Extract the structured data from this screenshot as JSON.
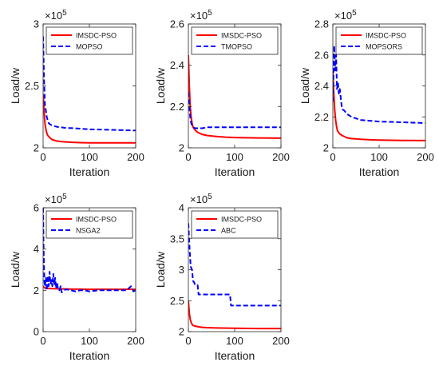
{
  "chart_data": [
    {
      "type": "line",
      "xlabel": "Iteration",
      "ylabel": "Load/w",
      "y_multiplier": "×10",
      "y_exponent": "5",
      "xlim": [
        0,
        200
      ],
      "ylim": [
        2,
        3
      ],
      "xticks": [
        0,
        100,
        200
      ],
      "yticks": [
        2,
        2.5,
        3
      ],
      "ytick_labels": [
        "2",
        "2.5",
        "3"
      ],
      "legend_position": "top-right",
      "series": [
        {
          "name": "IMSDC-PSO",
          "color": "#ff0000",
          "dash": "solid",
          "x": [
            0,
            2,
            4,
            6,
            8,
            10,
            15,
            20,
            30,
            40,
            60,
            80,
            100,
            150,
            200
          ],
          "y": [
            2.43,
            2.3,
            2.2,
            2.15,
            2.12,
            2.1,
            2.08,
            2.065,
            2.055,
            2.05,
            2.045,
            2.042,
            2.04,
            2.04,
            2.04
          ]
        },
        {
          "name": "MOPSO",
          "color": "#0000ff",
          "dash": "dashed",
          "x": [
            0,
            2,
            4,
            6,
            8,
            10,
            12,
            15,
            20,
            30,
            40,
            50,
            60,
            80,
            100,
            150,
            200
          ],
          "y": [
            2.9,
            2.55,
            2.35,
            2.3,
            2.25,
            2.22,
            2.2,
            2.19,
            2.18,
            2.17,
            2.165,
            2.16,
            2.16,
            2.155,
            2.15,
            2.145,
            2.14
          ]
        }
      ]
    },
    {
      "type": "line",
      "xlabel": "Iteration",
      "ylabel": "Load/w",
      "y_multiplier": "×10",
      "y_exponent": "5",
      "xlim": [
        0,
        200
      ],
      "ylim": [
        2,
        2.6
      ],
      "xticks": [
        0,
        100,
        200
      ],
      "yticks": [
        2,
        2.2,
        2.4,
        2.6
      ],
      "ytick_labels": [
        "2",
        "2.2",
        "2.4",
        "2.6"
      ],
      "legend_position": "top-right",
      "series": [
        {
          "name": "IMSDC-PSO",
          "color": "#ff0000",
          "dash": "solid",
          "x": [
            0,
            2,
            4,
            6,
            8,
            10,
            15,
            20,
            30,
            40,
            60,
            80,
            100,
            150,
            200
          ],
          "y": [
            2.45,
            2.3,
            2.2,
            2.15,
            2.12,
            2.1,
            2.085,
            2.075,
            2.065,
            2.06,
            2.055,
            2.052,
            2.05,
            2.048,
            2.047
          ]
        },
        {
          "name": "TMOPSO",
          "color": "#0000ff",
          "dash": "dashed",
          "x": [
            0,
            2,
            4,
            6,
            8,
            10,
            15,
            20,
            30,
            40,
            60,
            100,
            150,
            200
          ],
          "y": [
            2.27,
            2.2,
            2.15,
            2.12,
            2.11,
            2.1,
            2.095,
            2.095,
            2.095,
            2.1,
            2.1,
            2.1,
            2.1,
            2.1
          ]
        }
      ]
    },
    {
      "type": "line",
      "xlabel": "Iteration",
      "ylabel": "Load/w",
      "y_multiplier": "×10",
      "y_exponent": "5",
      "xlim": [
        0,
        200
      ],
      "ylim": [
        2,
        2.8
      ],
      "xticks": [
        0,
        100,
        200
      ],
      "yticks": [
        2,
        2.2,
        2.4,
        2.6,
        2.8
      ],
      "ytick_labels": [
        "2",
        "2.2",
        "2.4",
        "2.6",
        "2.8"
      ],
      "legend_position": "top-right",
      "series": [
        {
          "name": "IMSDC-PSO",
          "color": "#ff0000",
          "dash": "solid",
          "x": [
            0,
            2,
            4,
            6,
            8,
            10,
            15,
            20,
            30,
            40,
            60,
            80,
            100,
            150,
            200
          ],
          "y": [
            2.5,
            2.35,
            2.25,
            2.18,
            2.14,
            2.11,
            2.09,
            2.08,
            2.065,
            2.06,
            2.055,
            2.052,
            2.05,
            2.048,
            2.047
          ]
        },
        {
          "name": "MOPSORS",
          "color": "#0000ff",
          "dash": "dashed",
          "x": [
            0,
            3,
            5,
            7,
            9,
            11,
            13,
            15,
            18,
            20,
            25,
            30,
            40,
            50,
            60,
            80,
            100,
            150,
            200
          ],
          "y": [
            2.3,
            2.66,
            2.5,
            2.6,
            2.38,
            2.42,
            2.35,
            2.38,
            2.3,
            2.25,
            2.24,
            2.22,
            2.2,
            2.19,
            2.18,
            2.175,
            2.17,
            2.165,
            2.16
          ]
        }
      ]
    },
    {
      "type": "line",
      "xlabel": "Iteration",
      "ylabel": "Load/w",
      "y_multiplier": "×10",
      "y_exponent": "5",
      "xlim": [
        0,
        200
      ],
      "ylim": [
        0,
        6
      ],
      "xticks": [
        0,
        100,
        200
      ],
      "yticks": [
        0,
        2,
        4,
        6
      ],
      "ytick_labels": [
        "0",
        "2",
        "4",
        "6"
      ],
      "legend_position": "top-right",
      "series": [
        {
          "name": "IMSDC-PSO",
          "color": "#ff0000",
          "dash": "solid",
          "x": [
            0,
            2,
            5,
            10,
            20,
            40,
            60,
            100,
            150,
            200
          ],
          "y": [
            2.2,
            2.15,
            2.1,
            2.1,
            2.08,
            2.07,
            2.06,
            2.05,
            2.05,
            2.05
          ]
        },
        {
          "name": "NSGA2",
          "color": "#0000ff",
          "dash": "dashed",
          "x": [
            0,
            1,
            2,
            3,
            4,
            6,
            8,
            10,
            12,
            14,
            16,
            18,
            20,
            22,
            24,
            26,
            28,
            30,
            32,
            35,
            38,
            40,
            45,
            50,
            60,
            70,
            80,
            90,
            100,
            120,
            140,
            160,
            180,
            190,
            195,
            200
          ],
          "y": [
            6,
            4,
            3.1,
            2.4,
            2.2,
            2.6,
            2.0,
            2.7,
            2.2,
            2.9,
            2.3,
            2.5,
            2.2,
            2.8,
            2.3,
            2.6,
            2.1,
            2.4,
            2.1,
            2.0,
            2.2,
            1.9,
            2.0,
            2.05,
            2.0,
            1.95,
            2.0,
            2.0,
            1.95,
            2.0,
            2.0,
            2.0,
            2.0,
            2.2,
            1.95,
            2.0
          ]
        }
      ]
    },
    {
      "type": "line",
      "xlabel": "Iteration",
      "ylabel": "Load/w",
      "y_multiplier": "×10",
      "y_exponent": "5",
      "xlim": [
        0,
        200
      ],
      "ylim": [
        2,
        4
      ],
      "xticks": [
        0,
        100,
        200
      ],
      "yticks": [
        2,
        2.5,
        3,
        3.5,
        4
      ],
      "ytick_labels": [
        "2",
        "2.5",
        "3",
        "3.5",
        "4"
      ],
      "legend_position": "top-right",
      "series": [
        {
          "name": "IMSDC-PSO",
          "color": "#ff0000",
          "dash": "solid",
          "x": [
            0,
            2,
            4,
            6,
            8,
            10,
            15,
            20,
            30,
            40,
            60,
            100,
            150,
            200
          ],
          "y": [
            2.5,
            2.3,
            2.2,
            2.15,
            2.12,
            2.1,
            2.09,
            2.08,
            2.07,
            2.065,
            2.06,
            2.055,
            2.05,
            2.05
          ]
        },
        {
          "name": "ABC",
          "color": "#0000ff",
          "dash": "dashed",
          "x": [
            0,
            3,
            5,
            8,
            10,
            12,
            15,
            20,
            22,
            90,
            92,
            200
          ],
          "y": [
            3.75,
            3.3,
            3.05,
            3.0,
            2.82,
            2.8,
            2.75,
            2.75,
            2.6,
            2.6,
            2.42,
            2.42
          ]
        }
      ]
    }
  ]
}
